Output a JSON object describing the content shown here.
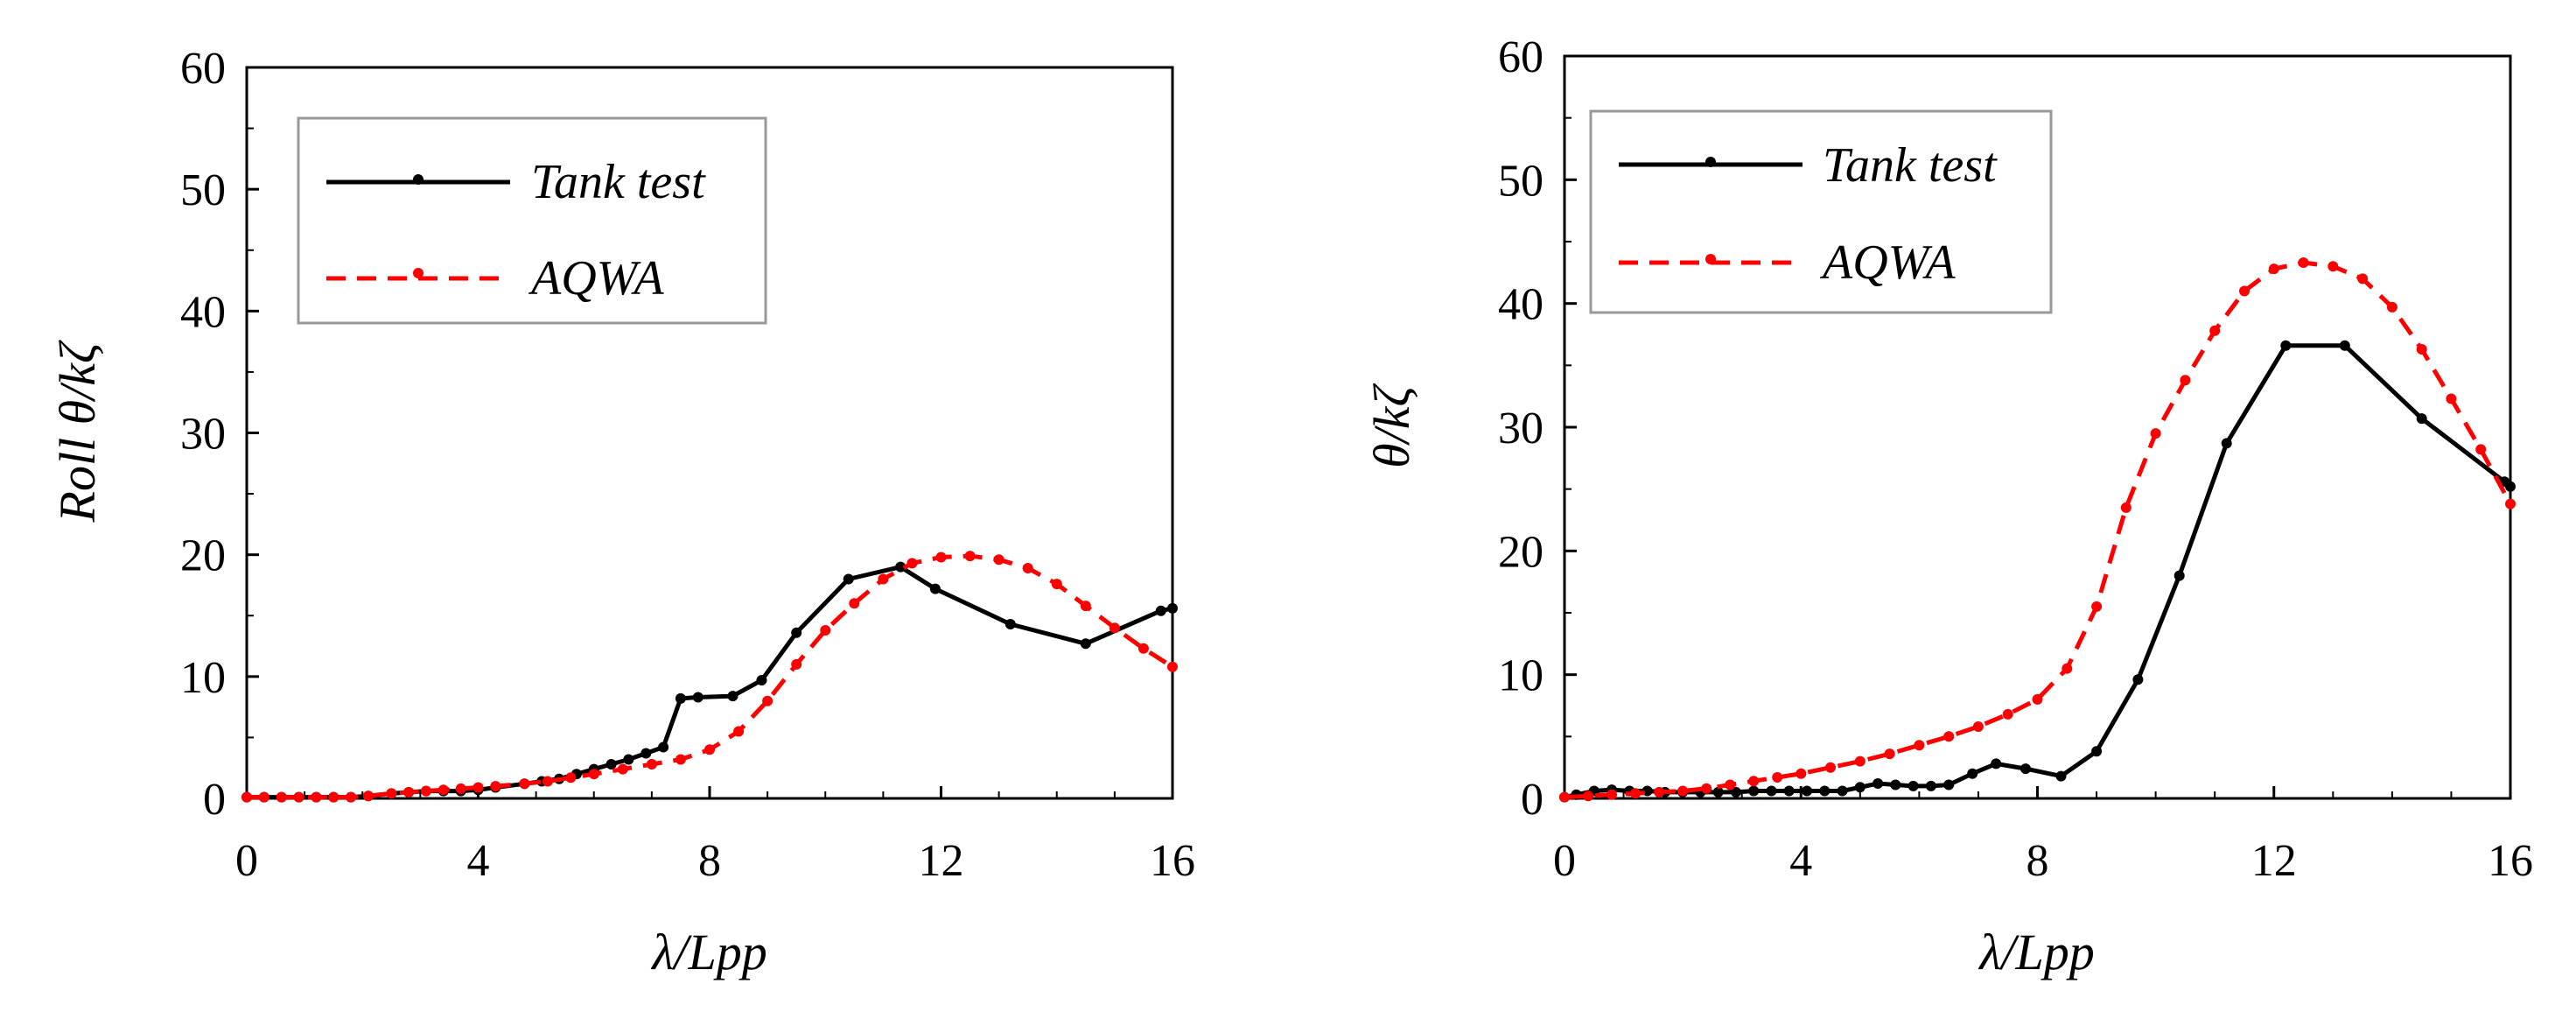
{
  "chart_data": [
    {
      "type": "line",
      "title": "",
      "xlabel": "λ/Lpp",
      "ylabel": "Roll θ/kζ",
      "xlim": [
        0,
        16
      ],
      "ylim": [
        0,
        60
      ],
      "xticks": [
        "0",
        "4",
        "8",
        "12",
        "16"
      ],
      "yticks": [
        "0",
        "10",
        "20",
        "30",
        "40",
        "50",
        "60"
      ],
      "grid": false,
      "legend_position": "top-left",
      "colors": {
        "tank": "#000000",
        "aqwa": "#ff0000"
      },
      "series": [
        {
          "name": "Tank test",
          "style": "solid",
          "x": [
            0,
            0.3,
            0.6,
            0.9,
            1.2,
            1.5,
            1.8,
            2.1,
            2.5,
            2.8,
            3.1,
            3.4,
            3.7,
            4.0,
            4.3,
            4.8,
            5.1,
            5.4,
            5.7,
            6.0,
            6.3,
            6.6,
            6.9,
            7.2,
            7.5,
            7.8,
            8.4,
            8.9,
            9.5,
            10.4,
            11.3,
            11.9,
            13.2,
            14.5,
            15.8,
            16.0
          ],
          "y": [
            0.1,
            0.1,
            0.1,
            0.1,
            0.1,
            0.1,
            0.1,
            0.2,
            0.4,
            0.5,
            0.6,
            0.6,
            0.6,
            0.7,
            0.9,
            1.2,
            1.4,
            1.6,
            2.0,
            2.4,
            2.8,
            3.2,
            3.7,
            4.2,
            8.2,
            8.3,
            8.4,
            9.7,
            13.6,
            18.0,
            19.0,
            17.2,
            14.3,
            12.7,
            15.4,
            15.6
          ]
        },
        {
          "name": "AQWA",
          "style": "dashed",
          "x": [
            0,
            0.3,
            0.6,
            0.9,
            1.2,
            1.5,
            1.8,
            2.1,
            2.5,
            2.8,
            3.1,
            3.4,
            3.7,
            4.0,
            4.3,
            4.8,
            5.2,
            5.6,
            6.0,
            6.5,
            7.0,
            7.5,
            8.0,
            8.5,
            9.0,
            9.5,
            10.0,
            10.5,
            11.0,
            11.5,
            12.0,
            12.5,
            13.0,
            13.5,
            14.0,
            14.5,
            15.0,
            15.5,
            16.0
          ],
          "y": [
            0.1,
            0.1,
            0.1,
            0.1,
            0.1,
            0.1,
            0.1,
            0.2,
            0.4,
            0.5,
            0.6,
            0.7,
            0.8,
            0.9,
            1.0,
            1.2,
            1.4,
            1.7,
            2.0,
            2.4,
            2.8,
            3.2,
            4.0,
            5.5,
            8.0,
            11.0,
            13.8,
            16.0,
            18.0,
            19.3,
            19.8,
            19.9,
            19.6,
            18.9,
            17.6,
            15.8,
            14.0,
            12.3,
            10.8
          ]
        }
      ]
    },
    {
      "type": "line",
      "title": "",
      "xlabel": "λ/Lpp",
      "ylabel": "θ/kζ",
      "xlim": [
        0,
        16
      ],
      "ylim": [
        0,
        60
      ],
      "xticks": [
        "0",
        "4",
        "8",
        "12",
        "16"
      ],
      "yticks": [
        "0",
        "10",
        "20",
        "30",
        "40",
        "50",
        "60"
      ],
      "grid": false,
      "legend_position": "top-left",
      "colors": {
        "tank": "#000000",
        "aqwa": "#ff0000"
      },
      "series": [
        {
          "name": "Tank test",
          "style": "solid",
          "x": [
            0,
            0.2,
            0.5,
            0.8,
            1.1,
            1.4,
            1.7,
            2.0,
            2.3,
            2.6,
            2.9,
            3.2,
            3.5,
            3.8,
            4.1,
            4.4,
            4.7,
            5.0,
            5.3,
            5.6,
            5.9,
            6.2,
            6.5,
            6.9,
            7.3,
            7.8,
            8.4,
            9.0,
            9.7,
            10.4,
            11.2,
            12.2,
            13.2,
            14.5,
            15.9,
            16.0
          ],
          "y": [
            0.1,
            0.3,
            0.6,
            0.7,
            0.6,
            0.6,
            0.5,
            0.5,
            0.5,
            0.5,
            0.5,
            0.6,
            0.6,
            0.6,
            0.6,
            0.6,
            0.6,
            0.9,
            1.2,
            1.1,
            1.0,
            1.0,
            1.1,
            2.0,
            2.8,
            2.4,
            1.8,
            3.8,
            9.6,
            18.0,
            28.7,
            36.6,
            36.6,
            30.7,
            25.6,
            25.2
          ]
        },
        {
          "name": "AQWA",
          "style": "dashed",
          "x": [
            0,
            0.4,
            0.8,
            1.2,
            1.6,
            2.0,
            2.4,
            2.8,
            3.2,
            3.6,
            4.0,
            4.5,
            5.0,
            5.5,
            6.0,
            6.5,
            7.0,
            7.5,
            8.0,
            8.5,
            9.0,
            9.5,
            10.0,
            10.5,
            11.0,
            11.5,
            12.0,
            12.5,
            13.0,
            13.5,
            14.0,
            14.5,
            15.0,
            15.5,
            16.0
          ],
          "y": [
            0.1,
            0.2,
            0.3,
            0.4,
            0.5,
            0.6,
            0.8,
            1.1,
            1.4,
            1.7,
            2.0,
            2.5,
            3.0,
            3.6,
            4.3,
            5.0,
            5.8,
            6.8,
            8.0,
            10.5,
            15.5,
            23.5,
            29.5,
            33.8,
            37.8,
            41.0,
            42.8,
            43.3,
            43.0,
            42.0,
            39.7,
            36.3,
            32.3,
            28.2,
            23.8
          ]
        }
      ]
    }
  ]
}
